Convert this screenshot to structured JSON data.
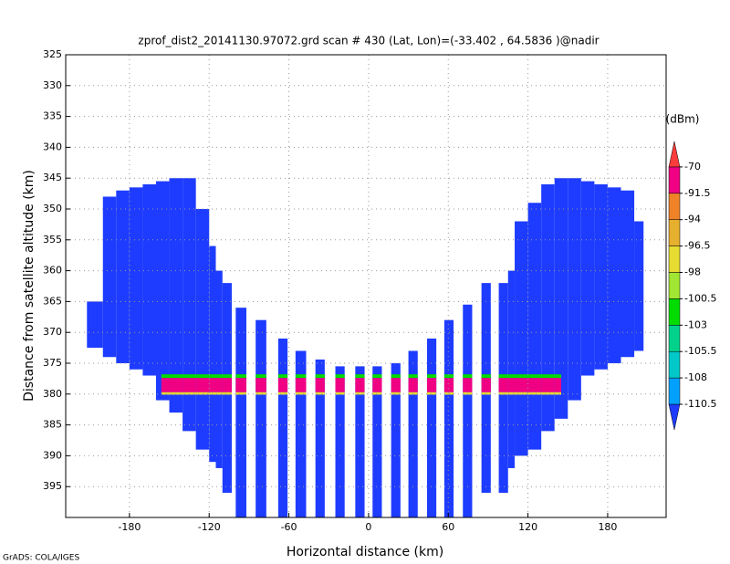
{
  "chart_data": {
    "type": "shaded",
    "title": "zprof_dist2_20141130.97072.grd  scan # 430  (Lat, Lon)=(-33.402 , 64.5836 )@nadir",
    "xlabel": "Horizontal distance (km)",
    "ylabel": "Distance from satellite altitude (km)",
    "credit": "GrADS: COLA/IGES",
    "xlim": [
      -228,
      224
    ],
    "ylim": [
      400,
      325
    ],
    "xticks": [
      -180,
      -120,
      -60,
      0,
      60,
      120,
      180
    ],
    "yticks": [
      325,
      330,
      335,
      340,
      345,
      350,
      355,
      360,
      365,
      370,
      375,
      380,
      385,
      390,
      395
    ],
    "grid": true,
    "colorbar": {
      "title": "(dBm)",
      "levels": [
        -110.5,
        -108,
        -105.5,
        -103,
        -100.5,
        -98,
        -96.5,
        -94,
        -91.5,
        -70
      ],
      "colors": [
        "#1e3cff",
        "#00a0ff",
        "#00c8c8",
        "#00d28c",
        "#00dc00",
        "#a0e632",
        "#e6dc32",
        "#e6af2d",
        "#f08228",
        "#f00082",
        "#fa3c3c"
      ]
    },
    "regions": [
      {
        "x": [
          -212,
          -200
        ],
        "y": [
          365,
          372.5
        ],
        "value": -115
      },
      {
        "x": [
          -200,
          -190
        ],
        "y": [
          348,
          374
        ],
        "value": -115
      },
      {
        "x": [
          -190,
          -180
        ],
        "y": [
          347,
          375
        ],
        "value": -115
      },
      {
        "x": [
          -180,
          -170
        ],
        "y": [
          346.5,
          376
        ],
        "value": -115
      },
      {
        "x": [
          -170,
          -160
        ],
        "y": [
          346,
          377
        ],
        "value": -115
      },
      {
        "x": [
          -160,
          -150
        ],
        "y": [
          345.5,
          381
        ],
        "value": -115
      },
      {
        "x": [
          -150,
          -140
        ],
        "y": [
          345,
          383
        ],
        "value": -115
      },
      {
        "x": [
          -140,
          -130
        ],
        "y": [
          345,
          386
        ],
        "value": -115
      },
      {
        "x": [
          -130,
          -120
        ],
        "y": [
          350,
          389
        ],
        "value": -115
      },
      {
        "x": [
          -120,
          -115
        ],
        "y": [
          356,
          391
        ],
        "value": -115
      },
      {
        "x": [
          -115,
          -110
        ],
        "y": [
          360,
          392
        ],
        "value": -115
      },
      {
        "x": [
          -110,
          -103
        ],
        "y": [
          362,
          396
        ],
        "value": -115
      },
      {
        "x": [
          -100,
          -92
        ],
        "y": [
          366,
          400
        ],
        "value": -115
      },
      {
        "x": [
          -85,
          -77
        ],
        "y": [
          368,
          400
        ],
        "value": -115
      },
      {
        "x": [
          -68,
          -61
        ],
        "y": [
          371,
          400
        ],
        "value": -115
      },
      {
        "x": [
          -55,
          -47
        ],
        "y": [
          373,
          400
        ],
        "value": -115
      },
      {
        "x": [
          -40,
          -33
        ],
        "y": [
          374.4,
          400
        ],
        "value": -115
      },
      {
        "x": [
          -25,
          -18
        ],
        "y": [
          375.5,
          400
        ],
        "value": -115
      },
      {
        "x": [
          -10,
          -3
        ],
        "y": [
          375.5,
          400
        ],
        "value": -115
      },
      {
        "x": [
          3,
          10
        ],
        "y": [
          375.5,
          400
        ],
        "value": -115
      },
      {
        "x": [
          17,
          24
        ],
        "y": [
          375,
          400
        ],
        "value": -115
      },
      {
        "x": [
          30,
          37
        ],
        "y": [
          373,
          400
        ],
        "value": -115
      },
      {
        "x": [
          44,
          51
        ],
        "y": [
          371,
          400
        ],
        "value": -115
      },
      {
        "x": [
          57,
          64
        ],
        "y": [
          368,
          400
        ],
        "value": -115
      },
      {
        "x": [
          71,
          78
        ],
        "y": [
          365.5,
          400
        ],
        "value": -115
      },
      {
        "x": [
          85,
          92
        ],
        "y": [
          362,
          396
        ],
        "value": -115
      },
      {
        "x": [
          98,
          105
        ],
        "y": [
          362,
          396
        ],
        "value": -115
      },
      {
        "x": [
          105,
          110
        ],
        "y": [
          360,
          392
        ],
        "value": -115
      },
      {
        "x": [
          110,
          120
        ],
        "y": [
          352,
          390
        ],
        "value": -115
      },
      {
        "x": [
          120,
          130
        ],
        "y": [
          349,
          389
        ],
        "value": -115
      },
      {
        "x": [
          130,
          140
        ],
        "y": [
          346,
          386
        ],
        "value": -115
      },
      {
        "x": [
          140,
          150
        ],
        "y": [
          345,
          384
        ],
        "value": -115
      },
      {
        "x": [
          150,
          160
        ],
        "y": [
          345,
          381
        ],
        "value": -115
      },
      {
        "x": [
          160,
          170
        ],
        "y": [
          345.5,
          377
        ],
        "value": -115
      },
      {
        "x": [
          170,
          180
        ],
        "y": [
          346,
          376
        ],
        "value": -115
      },
      {
        "x": [
          180,
          190
        ],
        "y": [
          346.5,
          375
        ],
        "value": -115
      },
      {
        "x": [
          190,
          200
        ],
        "y": [
          347,
          374
        ],
        "value": -115
      },
      {
        "x": [
          200,
          207
        ],
        "y": [
          352,
          373
        ],
        "value": -115
      }
    ],
    "bands": [
      {
        "x": [
          -156,
          145
        ],
        "y": [
          376.8,
          377.4
        ],
        "value": -101
      },
      {
        "x": [
          -156,
          145
        ],
        "y": [
          377.4,
          379.7
        ],
        "value": -80
      },
      {
        "x": [
          -156,
          145
        ],
        "y": [
          379.7,
          380.1
        ],
        "value": -97
      }
    ]
  }
}
